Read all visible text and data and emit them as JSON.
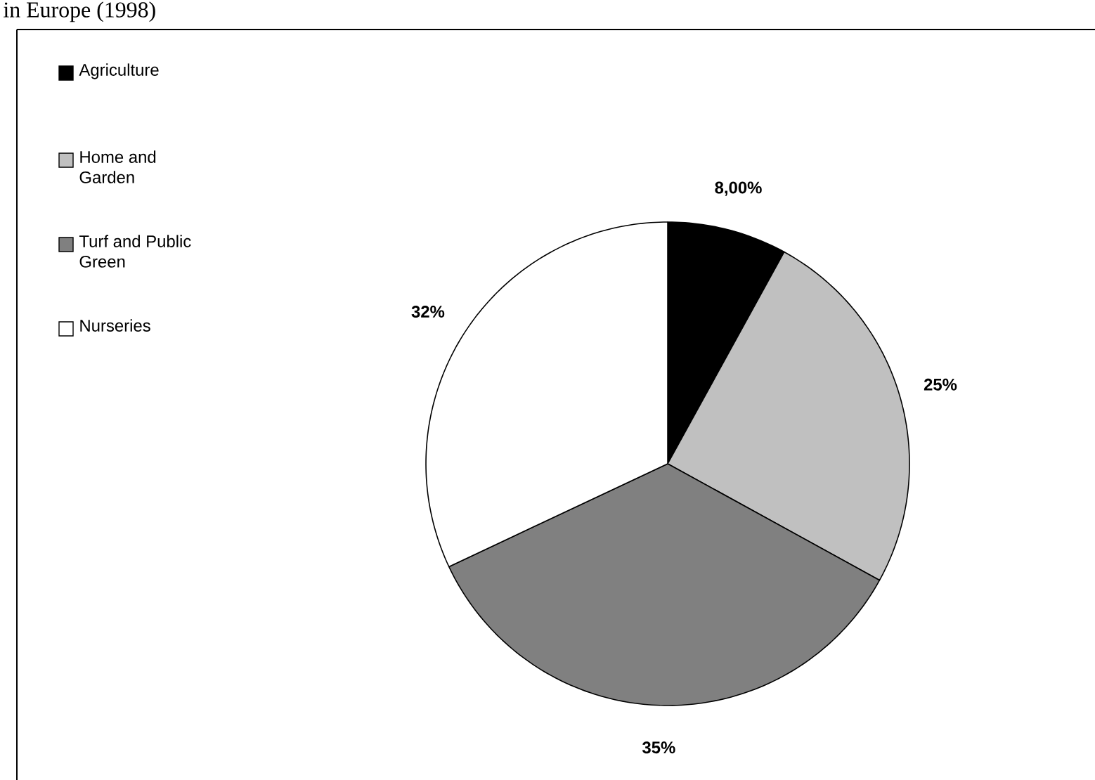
{
  "chart_data": {
    "type": "pie",
    "title": "in Europe (1998)",
    "categories": [
      "Agriculture",
      "Home and Garden",
      "Turf and Public Green",
      "Nurseries"
    ],
    "values": [
      8,
      25,
      35,
      32
    ],
    "colors": [
      "#000000",
      "#c0c0c0",
      "#808080",
      "#ffffff"
    ],
    "value_labels": [
      "8,00%",
      "25%",
      "35%",
      "32%"
    ],
    "legend": "left"
  }
}
